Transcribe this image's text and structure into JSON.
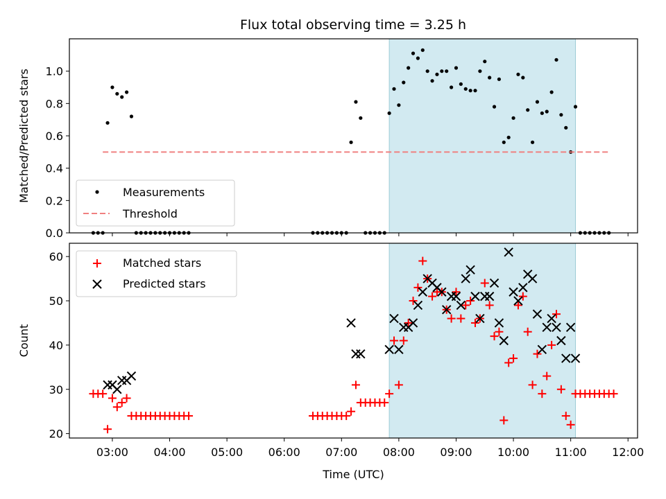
{
  "chart_data": [
    {
      "type": "scatter",
      "title": "Flux total observing time = 3.25 h",
      "xlabel": "",
      "ylabel": "Matched/Predicted stars",
      "x_unit": "UTC time (HH:MM)",
      "xlim": [
        "02:15",
        "12:10"
      ],
      "ylim": [
        0,
        1.2
      ],
      "yticks": [
        "0.0",
        "0.2",
        "0.4",
        "0.6",
        "0.8",
        "1.0"
      ],
      "highlight_span": {
        "from": "07:50",
        "to": "11:05",
        "color": "#add8e6"
      },
      "legend": {
        "placement": "lower-left",
        "entries": [
          "Measurements",
          "Threshold"
        ]
      },
      "series": [
        {
          "name": "Measurements",
          "marker": "dot",
          "color": "#000000",
          "points": [
            [
              "02:40",
              0
            ],
            [
              "02:45",
              0
            ],
            [
              "02:50",
              0
            ],
            [
              "02:55",
              0.68
            ],
            [
              "03:00",
              0.9
            ],
            [
              "03:05",
              0.86
            ],
            [
              "03:10",
              0.84
            ],
            [
              "03:15",
              0.87
            ],
            [
              "03:20",
              0.72
            ],
            [
              "03:25",
              0
            ],
            [
              "03:30",
              0
            ],
            [
              "03:35",
              0
            ],
            [
              "03:40",
              0
            ],
            [
              "03:45",
              0
            ],
            [
              "03:50",
              0
            ],
            [
              "03:55",
              0
            ],
            [
              "04:00",
              0
            ],
            [
              "04:05",
              0
            ],
            [
              "04:10",
              0
            ],
            [
              "04:15",
              0
            ],
            [
              "04:20",
              0
            ],
            [
              "06:30",
              0
            ],
            [
              "06:35",
              0
            ],
            [
              "06:40",
              0
            ],
            [
              "06:45",
              0
            ],
            [
              "06:50",
              0
            ],
            [
              "06:55",
              0
            ],
            [
              "07:00",
              0
            ],
            [
              "07:05",
              0
            ],
            [
              "07:10",
              0.56
            ],
            [
              "07:15",
              0.81
            ],
            [
              "07:20",
              0.71
            ],
            [
              "07:25",
              0
            ],
            [
              "07:30",
              0
            ],
            [
              "07:35",
              0
            ],
            [
              "07:40",
              0
            ],
            [
              "07:45",
              0
            ],
            [
              "07:50",
              0.74
            ],
            [
              "07:55",
              0.89
            ],
            [
              "08:00",
              0.79
            ],
            [
              "08:05",
              0.93
            ],
            [
              "08:10",
              1.02
            ],
            [
              "08:15",
              1.11
            ],
            [
              "08:20",
              1.08
            ],
            [
              "08:25",
              1.13
            ],
            [
              "08:30",
              1.0
            ],
            [
              "08:35",
              0.94
            ],
            [
              "08:40",
              0.98
            ],
            [
              "08:45",
              1.0
            ],
            [
              "08:50",
              1.0
            ],
            [
              "08:55",
              0.9
            ],
            [
              "09:00",
              1.02
            ],
            [
              "09:05",
              0.92
            ],
            [
              "09:10",
              0.89
            ],
            [
              "09:15",
              0.88
            ],
            [
              "09:20",
              0.88
            ],
            [
              "09:25",
              1.0
            ],
            [
              "09:30",
              1.06
            ],
            [
              "09:35",
              0.96
            ],
            [
              "09:40",
              0.78
            ],
            [
              "09:45",
              0.95
            ],
            [
              "09:50",
              0.56
            ],
            [
              "09:55",
              0.59
            ],
            [
              "10:00",
              0.71
            ],
            [
              "10:05",
              0.98
            ],
            [
              "10:10",
              0.96
            ],
            [
              "10:15",
              0.76
            ],
            [
              "10:20",
              0.56
            ],
            [
              "10:25",
              0.81
            ],
            [
              "10:30",
              0.74
            ],
            [
              "10:35",
              0.75
            ],
            [
              "10:40",
              0.87
            ],
            [
              "10:45",
              1.07
            ],
            [
              "10:50",
              0.73
            ],
            [
              "10:55",
              0.65
            ],
            [
              "11:00",
              0.5
            ],
            [
              "11:05",
              0.78
            ],
            [
              "11:10",
              0
            ],
            [
              "11:15",
              0
            ],
            [
              "11:20",
              0
            ],
            [
              "11:25",
              0
            ],
            [
              "11:30",
              0
            ],
            [
              "11:35",
              0
            ],
            [
              "11:40",
              0
            ]
          ]
        },
        {
          "name": "Threshold",
          "marker": "dashed-line",
          "color": "#f08080",
          "points": [
            [
              "02:50",
              0.5
            ],
            [
              "11:40",
              0.5
            ]
          ]
        }
      ]
    },
    {
      "type": "scatter",
      "title": "",
      "xlabel": "Time (UTC)",
      "ylabel": "Count",
      "x_unit": "UTC time (HH:MM)",
      "xlim": [
        "02:15",
        "12:10"
      ],
      "ylim": [
        19,
        63
      ],
      "yticks": [
        "20",
        "30",
        "40",
        "50",
        "60"
      ],
      "xticks": [
        "03:00",
        "04:00",
        "05:00",
        "06:00",
        "07:00",
        "08:00",
        "09:00",
        "10:00",
        "11:00",
        "12:00"
      ],
      "highlight_span": {
        "from": "07:50",
        "to": "11:05",
        "color": "#add8e6"
      },
      "legend": {
        "placement": "upper-left",
        "entries": [
          "Matched stars",
          "Predicted stars"
        ]
      },
      "series": [
        {
          "name": "Matched stars",
          "marker": "plus",
          "color": "#ff0000",
          "points": [
            [
              "02:40",
              29
            ],
            [
              "02:45",
              29
            ],
            [
              "02:50",
              29
            ],
            [
              "02:55",
              21
            ],
            [
              "03:00",
              28
            ],
            [
              "03:05",
              26
            ],
            [
              "03:10",
              27
            ],
            [
              "03:15",
              28
            ],
            [
              "03:20",
              24
            ],
            [
              "03:25",
              24
            ],
            [
              "03:30",
              24
            ],
            [
              "03:35",
              24
            ],
            [
              "03:40",
              24
            ],
            [
              "03:45",
              24
            ],
            [
              "03:50",
              24
            ],
            [
              "03:55",
              24
            ],
            [
              "04:00",
              24
            ],
            [
              "04:05",
              24
            ],
            [
              "04:10",
              24
            ],
            [
              "04:15",
              24
            ],
            [
              "04:20",
              24
            ],
            [
              "06:30",
              24
            ],
            [
              "06:35",
              24
            ],
            [
              "06:40",
              24
            ],
            [
              "06:45",
              24
            ],
            [
              "06:50",
              24
            ],
            [
              "06:55",
              24
            ],
            [
              "07:00",
              24
            ],
            [
              "07:05",
              24
            ],
            [
              "07:10",
              25
            ],
            [
              "07:15",
              31
            ],
            [
              "07:20",
              27
            ],
            [
              "07:25",
              27
            ],
            [
              "07:30",
              27
            ],
            [
              "07:35",
              27
            ],
            [
              "07:40",
              27
            ],
            [
              "07:45",
              27
            ],
            [
              "07:50",
              29
            ],
            [
              "07:55",
              41
            ],
            [
              "08:00",
              31
            ],
            [
              "08:05",
              41
            ],
            [
              "08:10",
              45
            ],
            [
              "08:15",
              50
            ],
            [
              "08:20",
              53
            ],
            [
              "08:25",
              59
            ],
            [
              "08:30",
              55
            ],
            [
              "08:35",
              51
            ],
            [
              "08:40",
              52
            ],
            [
              "08:45",
              52
            ],
            [
              "08:50",
              48
            ],
            [
              "08:55",
              46
            ],
            [
              "09:00",
              52
            ],
            [
              "09:05",
              46
            ],
            [
              "09:10",
              49
            ],
            [
              "09:15",
              50
            ],
            [
              "09:20",
              45
            ],
            [
              "09:25",
              46
            ],
            [
              "09:30",
              54
            ],
            [
              "09:35",
              49
            ],
            [
              "09:40",
              42
            ],
            [
              "09:45",
              43
            ],
            [
              "09:50",
              23
            ],
            [
              "09:55",
              36
            ],
            [
              "10:00",
              37
            ],
            [
              "10:05",
              49
            ],
            [
              "10:10",
              51
            ],
            [
              "10:15",
              43
            ],
            [
              "10:20",
              31
            ],
            [
              "10:25",
              38
            ],
            [
              "10:30",
              29
            ],
            [
              "10:35",
              33
            ],
            [
              "10:40",
              40
            ],
            [
              "10:45",
              47
            ],
            [
              "10:50",
              30
            ],
            [
              "10:55",
              24
            ],
            [
              "11:00",
              22
            ],
            [
              "11:05",
              29
            ],
            [
              "11:10",
              29
            ],
            [
              "11:15",
              29
            ],
            [
              "11:20",
              29
            ],
            [
              "11:25",
              29
            ],
            [
              "11:30",
              29
            ],
            [
              "11:35",
              29
            ],
            [
              "11:40",
              29
            ],
            [
              "11:45",
              29
            ]
          ]
        },
        {
          "name": "Predicted stars",
          "marker": "x",
          "color": "#000000",
          "points": [
            [
              "02:55",
              31
            ],
            [
              "03:00",
              31
            ],
            [
              "03:05",
              30
            ],
            [
              "03:10",
              32
            ],
            [
              "03:15",
              32
            ],
            [
              "03:20",
              33
            ],
            [
              "07:10",
              45
            ],
            [
              "07:15",
              38
            ],
            [
              "07:20",
              38
            ],
            [
              "07:50",
              39
            ],
            [
              "07:55",
              46
            ],
            [
              "08:00",
              39
            ],
            [
              "08:05",
              44
            ],
            [
              "08:10",
              44
            ],
            [
              "08:15",
              45
            ],
            [
              "08:20",
              49
            ],
            [
              "08:25",
              52
            ],
            [
              "08:30",
              55
            ],
            [
              "08:35",
              54
            ],
            [
              "08:40",
              53
            ],
            [
              "08:45",
              52
            ],
            [
              "08:50",
              48
            ],
            [
              "08:55",
              51
            ],
            [
              "09:00",
              51
            ],
            [
              "09:05",
              49
            ],
            [
              "09:10",
              55
            ],
            [
              "09:15",
              57
            ],
            [
              "09:20",
              51
            ],
            [
              "09:25",
              46
            ],
            [
              "09:30",
              51
            ],
            [
              "09:35",
              51
            ],
            [
              "09:40",
              54
            ],
            [
              "09:45",
              45
            ],
            [
              "09:50",
              41
            ],
            [
              "09:55",
              61
            ],
            [
              "10:00",
              52
            ],
            [
              "10:05",
              50
            ],
            [
              "10:10",
              53
            ],
            [
              "10:15",
              56
            ],
            [
              "10:20",
              55
            ],
            [
              "10:25",
              47
            ],
            [
              "10:30",
              39
            ],
            [
              "10:35",
              44
            ],
            [
              "10:40",
              46
            ],
            [
              "10:45",
              44
            ],
            [
              "10:50",
              41
            ],
            [
              "10:55",
              37
            ],
            [
              "11:00",
              44
            ],
            [
              "11:05",
              37
            ]
          ]
        }
      ]
    }
  ]
}
